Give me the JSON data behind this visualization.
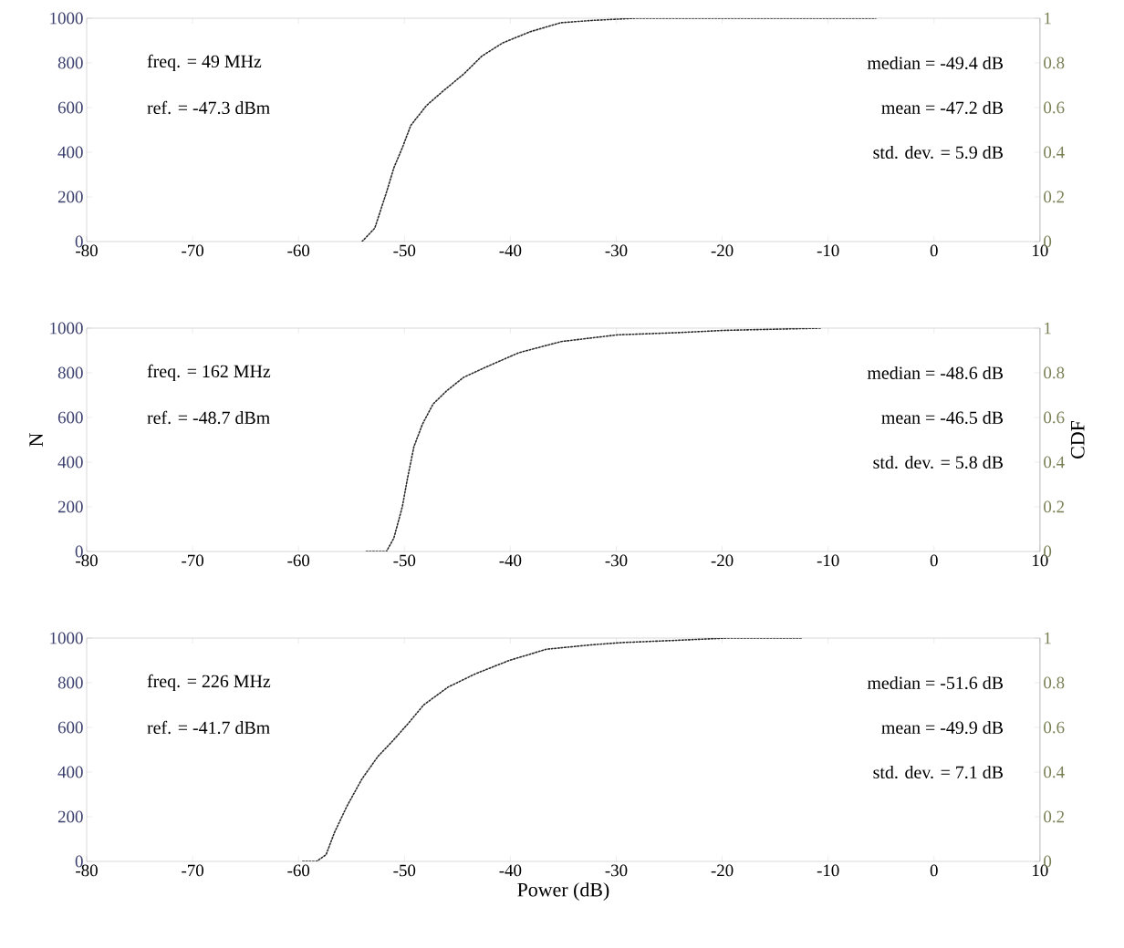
{
  "chart_data": [
    {
      "type": "line",
      "ylim": [
        0,
        1000
      ],
      "yticks": [
        0,
        200,
        400,
        600,
        800,
        1000
      ],
      "y2lim": [
        0,
        1
      ],
      "y2ticks": [
        0,
        0.2,
        0.4,
        0.6,
        0.8,
        1
      ],
      "xlim": [
        -80,
        10
      ],
      "xticks": [
        -80,
        -70,
        -60,
        -50,
        -40,
        -30,
        -20,
        -10,
        0,
        10
      ],
      "line_style": "dotted",
      "marker": "none",
      "grid": false,
      "legend": false,
      "annotations": [
        "freq. = 49 MHz",
        "ref. = -47.3 dBm",
        "median = -49.4 dB",
        "mean = -47.2 dB",
        "std. dev. = 5.9 dB"
      ],
      "series": [
        {
          "axis": "y2",
          "color": "#2b2b2b",
          "x": [
            -54.0,
            -52.8,
            -51.7,
            -51.0,
            -50.2,
            -49.4,
            -47.9,
            -46.2,
            -44.4,
            -42.7,
            -40.7,
            -38.1,
            -35.2,
            -32.3,
            -28.2,
            -5.5
          ],
          "values": [
            0.0,
            0.06,
            0.22,
            0.33,
            0.42,
            0.52,
            0.61,
            0.68,
            0.75,
            0.83,
            0.89,
            0.94,
            0.98,
            0.99,
            1.0,
            1.0
          ]
        }
      ]
    },
    {
      "type": "line",
      "ylabel": "N",
      "y2label": "CDF",
      "ylim": [
        0,
        1000
      ],
      "yticks": [
        0,
        200,
        400,
        600,
        800,
        1000
      ],
      "y2lim": [
        0,
        1
      ],
      "y2ticks": [
        0,
        0.2,
        0.4,
        0.6,
        0.8,
        1
      ],
      "xlim": [
        -80,
        10
      ],
      "xticks": [
        -80,
        -70,
        -60,
        -50,
        -40,
        -30,
        -20,
        -10,
        0,
        10
      ],
      "line_style": "dotted",
      "marker": "none",
      "grid": false,
      "legend": false,
      "annotations": [
        "freq. = 162 MHz",
        "ref. = -48.7 dBm",
        "median = -48.6 dB",
        "mean = -46.5 dB",
        "std. dev. = 5.8 dB"
      ],
      "series": [
        {
          "axis": "y2",
          "color": "#2b2b2b",
          "x": [
            -53.6,
            -51.7,
            -51.0,
            -50.2,
            -49.7,
            -49.1,
            -48.3,
            -47.3,
            -46.0,
            -44.4,
            -42.1,
            -39.2,
            -35.2,
            -29.9,
            -24.1,
            -19.8,
            -10.7
          ],
          "values": [
            0.0,
            0.0,
            0.06,
            0.2,
            0.33,
            0.47,
            0.57,
            0.66,
            0.72,
            0.78,
            0.83,
            0.89,
            0.94,
            0.97,
            0.98,
            0.99,
            1.0
          ]
        }
      ]
    },
    {
      "type": "line",
      "xlabel": "Power (dB)",
      "ylim": [
        0,
        1000
      ],
      "yticks": [
        0,
        200,
        400,
        600,
        800,
        1000
      ],
      "y2lim": [
        0,
        1
      ],
      "y2ticks": [
        0,
        0.2,
        0.4,
        0.6,
        0.8,
        1
      ],
      "xlim": [
        -80,
        10
      ],
      "xticks": [
        -80,
        -70,
        -60,
        -50,
        -40,
        -30,
        -20,
        -10,
        0,
        10
      ],
      "line_style": "dotted",
      "marker": "none",
      "grid": false,
      "legend": false,
      "annotations": [
        "freq. = 226 MHz",
        "ref. = -41.7 dBm",
        "median = -51.6 dB",
        "mean = -49.9 dB",
        "std. dev. = 7.1 dB"
      ],
      "series": [
        {
          "axis": "y2",
          "color": "#2b2b2b",
          "x": [
            -59.6,
            -58.3,
            -57.4,
            -56.6,
            -55.4,
            -54.0,
            -52.5,
            -51.1,
            -49.6,
            -48.2,
            -45.9,
            -43.3,
            -40.1,
            -36.6,
            -32.3,
            -29.4,
            -24.2,
            -19.6,
            -12.4
          ],
          "values": [
            0.0,
            0.0,
            0.03,
            0.13,
            0.25,
            0.37,
            0.47,
            0.54,
            0.62,
            0.7,
            0.78,
            0.84,
            0.9,
            0.95,
            0.97,
            0.98,
            0.99,
            1.0,
            1.0
          ]
        }
      ]
    }
  ]
}
